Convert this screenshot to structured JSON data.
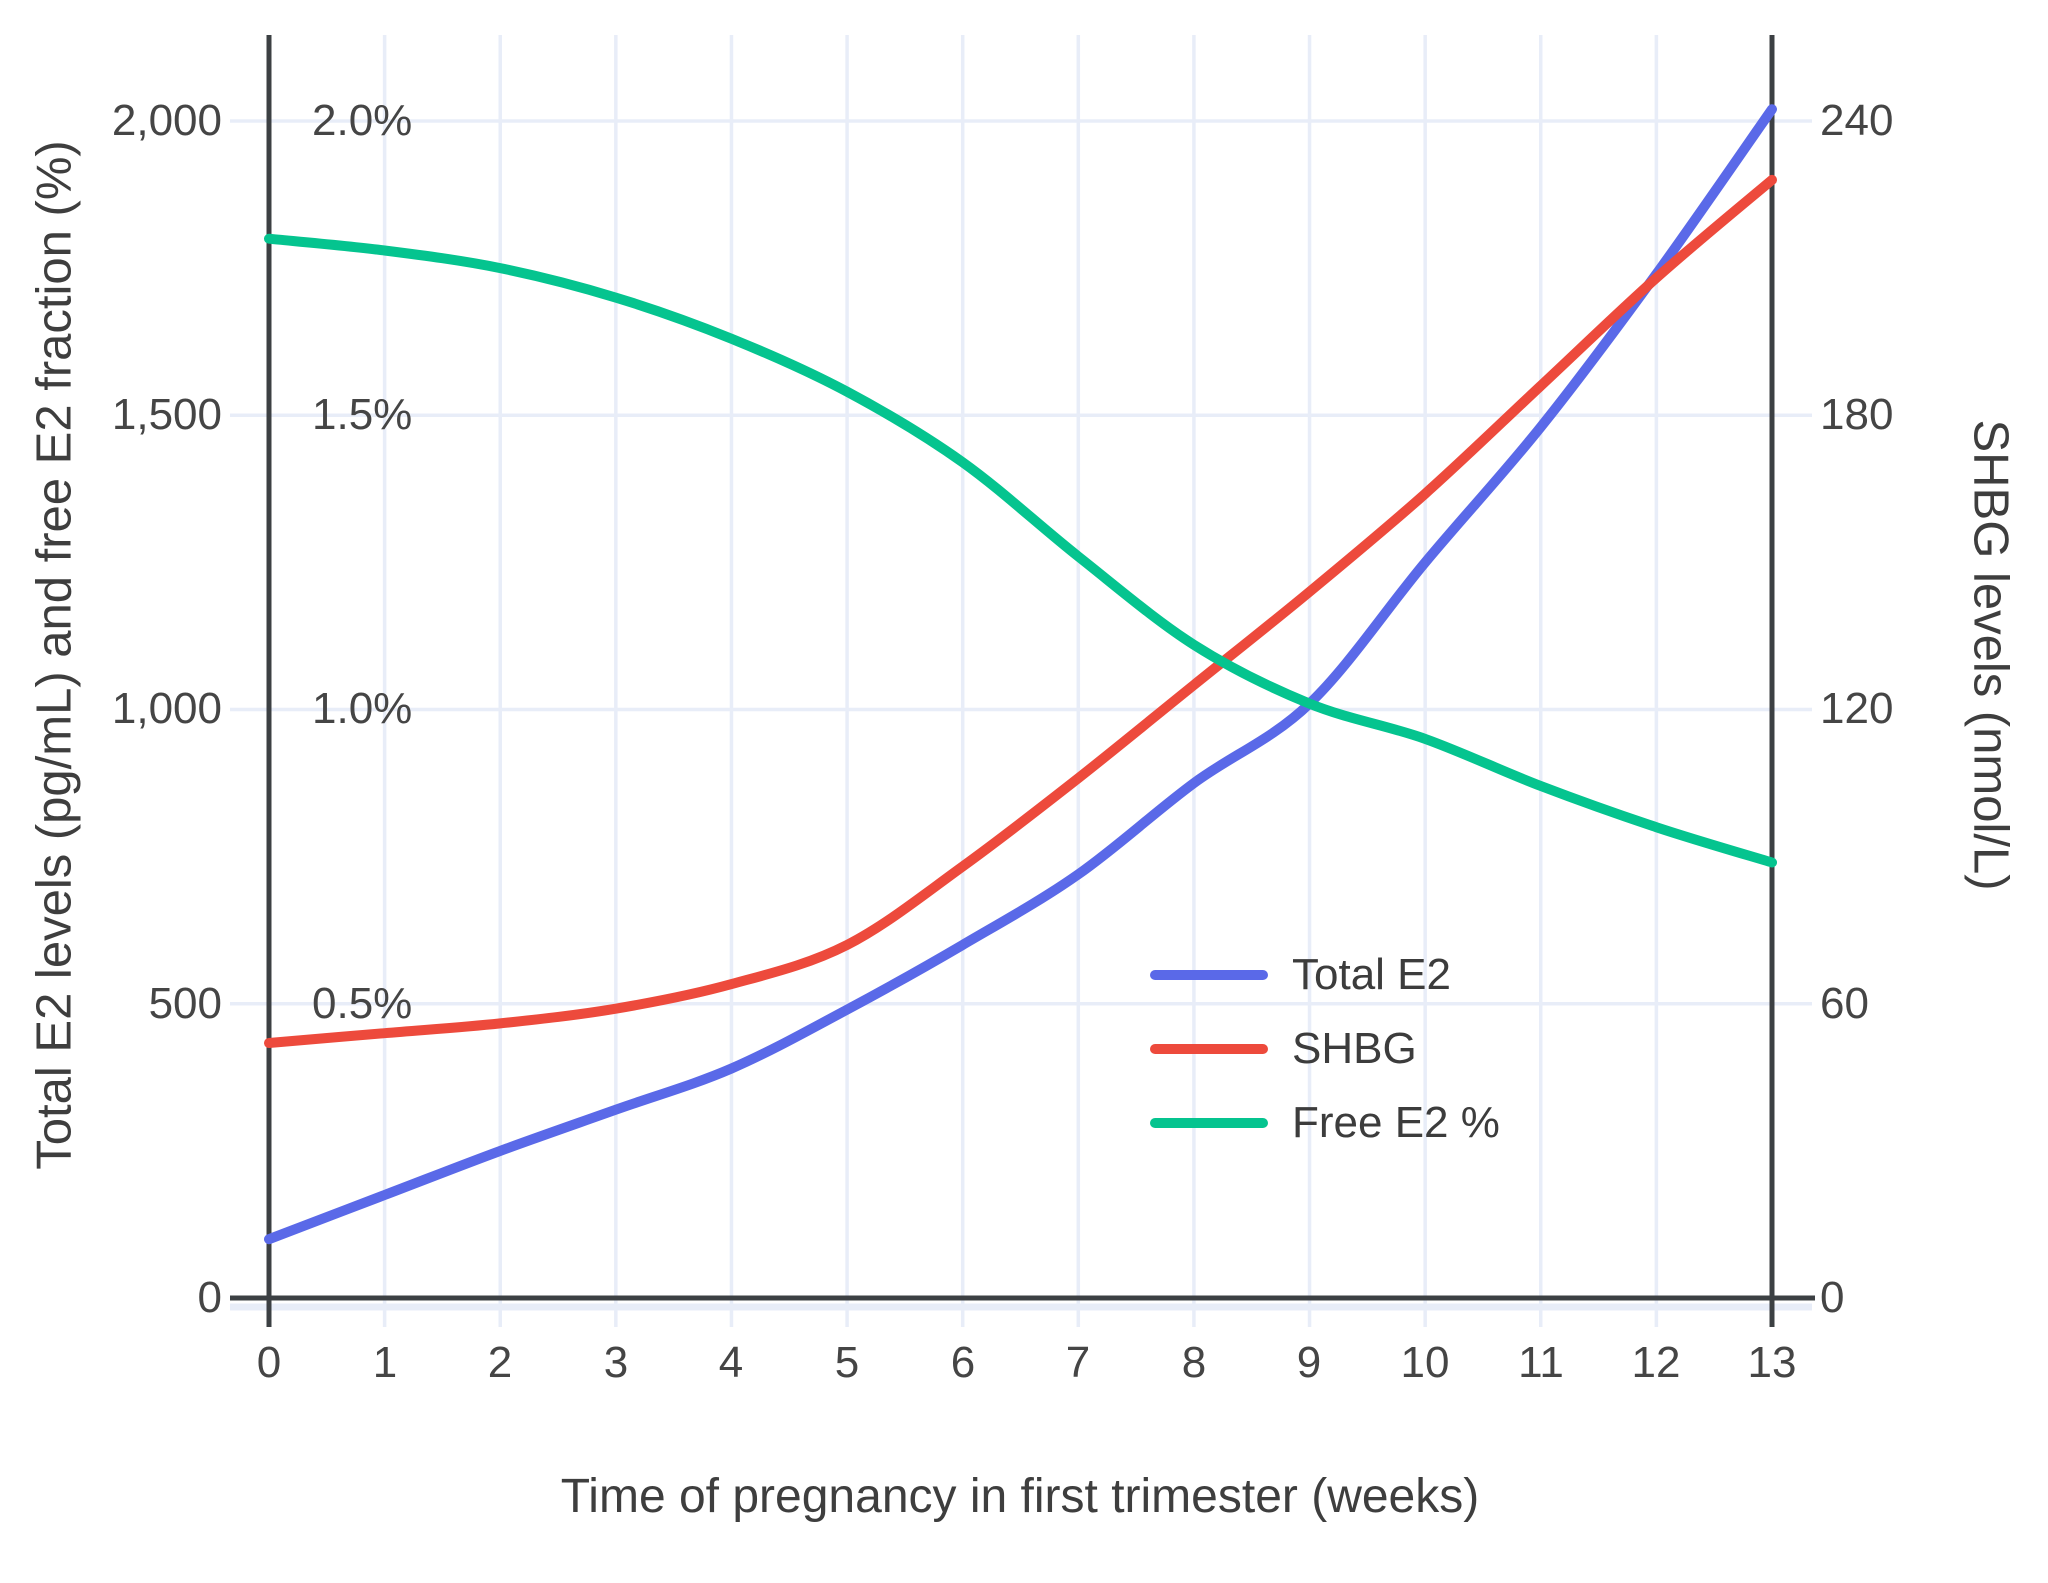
{
  "chart_data": {
    "type": "line",
    "title": "",
    "xlabel": "Time of pregnancy in first trimester (weeks)",
    "x": [
      0,
      1,
      2,
      3,
      4,
      5,
      6,
      7,
      8,
      9,
      10,
      11,
      12,
      13
    ],
    "x_ticks": [
      "0",
      "1",
      "2",
      "3",
      "4",
      "5",
      "6",
      "7",
      "8",
      "9",
      "10",
      "11",
      "12",
      "13"
    ],
    "y_left": {
      "label": "Total E2 levels (pg/mL) and free E2 fraction (%)",
      "range": [
        0,
        2000
      ],
      "tick_values": [
        0,
        500,
        1000,
        1500,
        2000
      ],
      "ticks": [
        "0",
        "500",
        "1,000",
        "1,500",
        "2,000"
      ]
    },
    "y_left_percent": {
      "tick_values": [
        0.5,
        1.0,
        1.5,
        2.0
      ],
      "ticks": [
        "0.5%",
        "1.0%",
        "1.5%",
        "2.0%"
      ]
    },
    "y_right": {
      "label": "SHBG levels (nmol/L)",
      "range": [
        0,
        240
      ],
      "tick_values": [
        0,
        60,
        120,
        180,
        240
      ],
      "ticks": [
        "0",
        "60",
        "120",
        "180",
        "240"
      ]
    },
    "grid": true,
    "legend_position": "inside-center-right",
    "series": [
      {
        "name": "Total E2",
        "color": "#5a69e8",
        "axis": "left",
        "unit": "pg/mL",
        "values": [
          100,
          175,
          250,
          320,
          390,
          490,
          600,
          720,
          875,
          1010,
          1250,
          1480,
          1740,
          2020
        ]
      },
      {
        "name": "SHBG",
        "color": "#ed4a3c",
        "axis": "right",
        "unit": "nmol/L",
        "values": [
          52,
          54,
          56,
          59,
          64,
          72,
          88,
          106,
          125,
          144,
          164,
          186,
          208,
          228
        ]
      },
      {
        "name": "Free E2 %",
        "color": "#05c48f",
        "axis": "left",
        "unit": "%",
        "values": [
          1.8,
          1.78,
          1.75,
          1.7,
          1.63,
          1.54,
          1.42,
          1.26,
          1.11,
          1.01,
          0.95,
          0.87,
          0.8,
          0.74
        ]
      }
    ],
    "colors": {
      "grid": "#e8edf8",
      "axis": "#3c4043",
      "tick_text": "#454545"
    }
  }
}
